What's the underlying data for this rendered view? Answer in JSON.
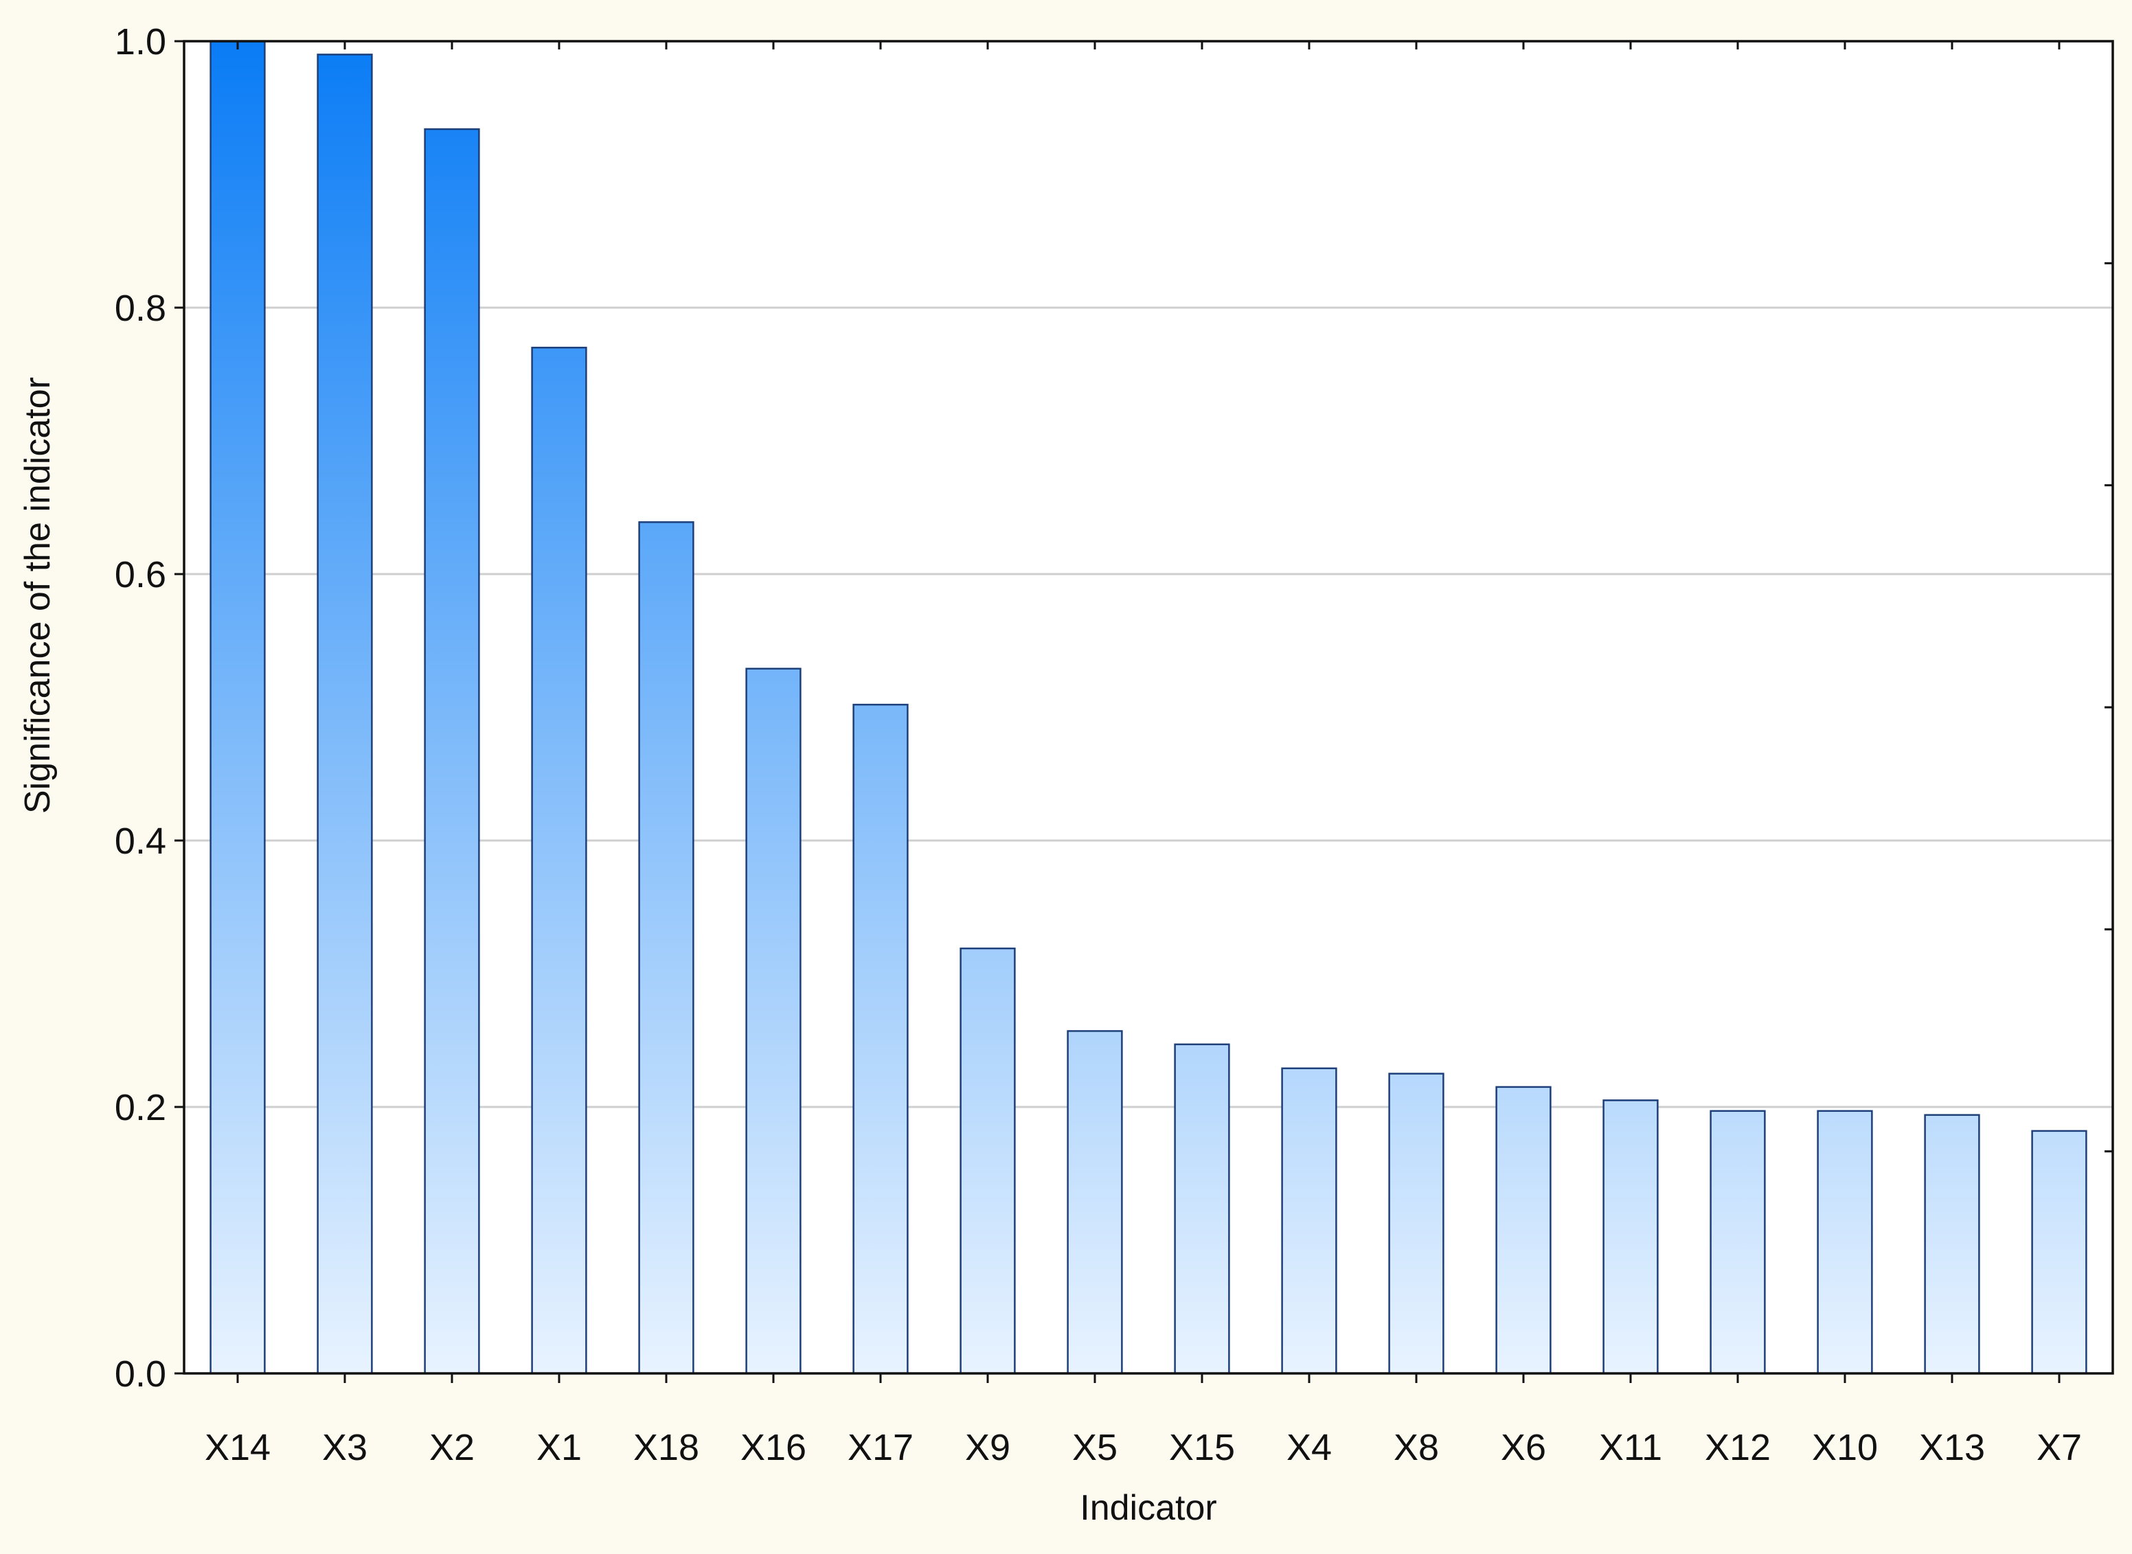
{
  "chart_data": {
    "type": "bar",
    "title": "",
    "xlabel": "Indicator",
    "ylabel": "Significance of the indicator",
    "categories": [
      "X14",
      "X3",
      "X2",
      "X1",
      "X18",
      "X16",
      "X17",
      "X9",
      "X5",
      "X15",
      "X4",
      "X8",
      "X6",
      "X11",
      "X12",
      "X10",
      "X13",
      "X7"
    ],
    "values": [
      1.0,
      0.99,
      0.934,
      0.77,
      0.639,
      0.529,
      0.502,
      0.319,
      0.257,
      0.247,
      0.229,
      0.225,
      0.215,
      0.205,
      0.197,
      0.197,
      0.194,
      0.182
    ],
    "ylim": [
      0,
      1.0
    ],
    "yticks": [
      "0.0",
      "0.2",
      "0.4",
      "0.6",
      "0.8",
      "1.0"
    ],
    "grid": true,
    "legend": "none",
    "colors": {
      "bar_top": "#0a7cf5",
      "bar_bottom": "#e8f3ff",
      "bar_stroke": "#1d3f7a",
      "page_background": "#fdfaf0",
      "plot_background": "#ffffff",
      "gridline": "#cfcfcf",
      "axis": "#111111"
    }
  }
}
